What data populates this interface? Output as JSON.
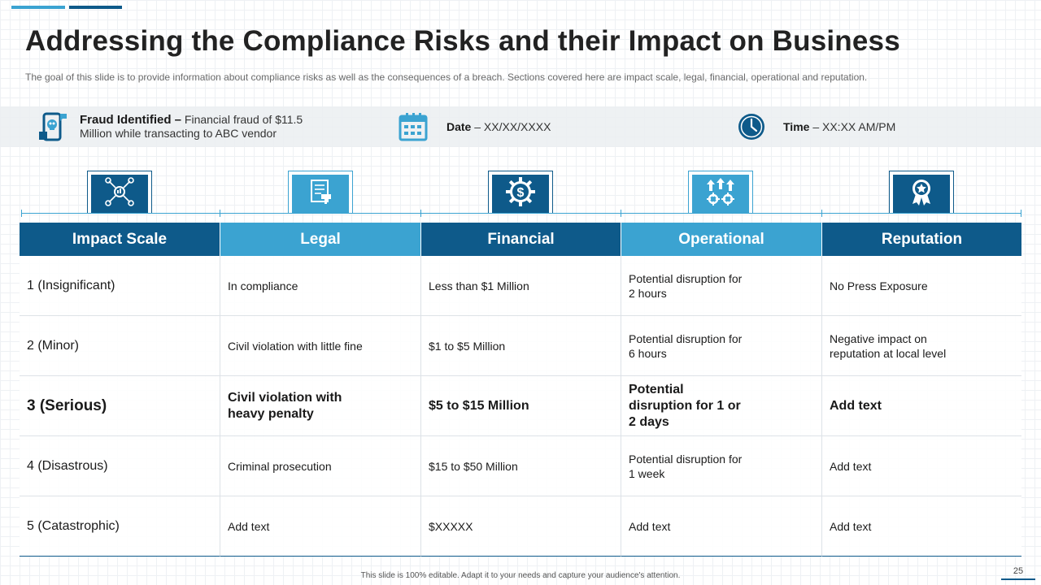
{
  "slide": {
    "title": "Addressing the Compliance Risks and their Impact on Business",
    "subtitle": "The goal of this slide is to provide  information  about compliance risks as well as the consequences of a breach. Sections covered  here are impact scale, legal, financial, operational and reputation.",
    "footer_note": "This slide is 100% editable. Adapt it to your needs and capture your audience's attention.",
    "page_number": "25"
  },
  "info": {
    "fraud": {
      "label": "Fraud Identified –",
      "text": " Financial fraud of $11.5 Million  while transacting to ABC vendor",
      "icon": "phone-skull-icon"
    },
    "date": {
      "label": "Date",
      "text": " – XX/XX/XXXX",
      "icon": "calendar-icon"
    },
    "time": {
      "label": "Time",
      "text": " – XX:XX  AM/PM",
      "icon": "clock-icon"
    }
  },
  "table": {
    "columns": [
      {
        "label": "Impact Scale",
        "icon": "network-hub-icon"
      },
      {
        "label": "Legal",
        "icon": "document-gavel-icon"
      },
      {
        "label": "Financial",
        "icon": "dollar-gear-icon"
      },
      {
        "label": "Operational",
        "icon": "gears-arrows-icon"
      },
      {
        "label": "Reputation",
        "icon": "award-ribbon-icon"
      }
    ],
    "rows": [
      [
        "1 (Insignificant)",
        "In compliance",
        "Less than $1 Million",
        "Potential disruption for 2 hours",
        "No Press Exposure"
      ],
      [
        "2 (Minor)",
        "Civil violation with little fine",
        "$1 to $5 Million",
        "Potential disruption for 6 hours",
        "Negative impact on reputation at local level"
      ],
      [
        "3 (Serious)",
        "Civil violation with heavy penalty",
        "$5 to $15 Million",
        "Potential disruption for 1 or 2 days",
        "Add text"
      ],
      [
        "4 (Disastrous)",
        "Criminal prosecution",
        "$15 to $50 Million",
        "Potential disruption for 1 week",
        "Add text"
      ],
      [
        "5 (Catastrophic)",
        "Add text",
        "$XXXXX",
        "Add text",
        "Add text"
      ]
    ]
  },
  "colors": {
    "dark_blue": "#0e5a8a",
    "light_blue": "#3ba3d1"
  }
}
